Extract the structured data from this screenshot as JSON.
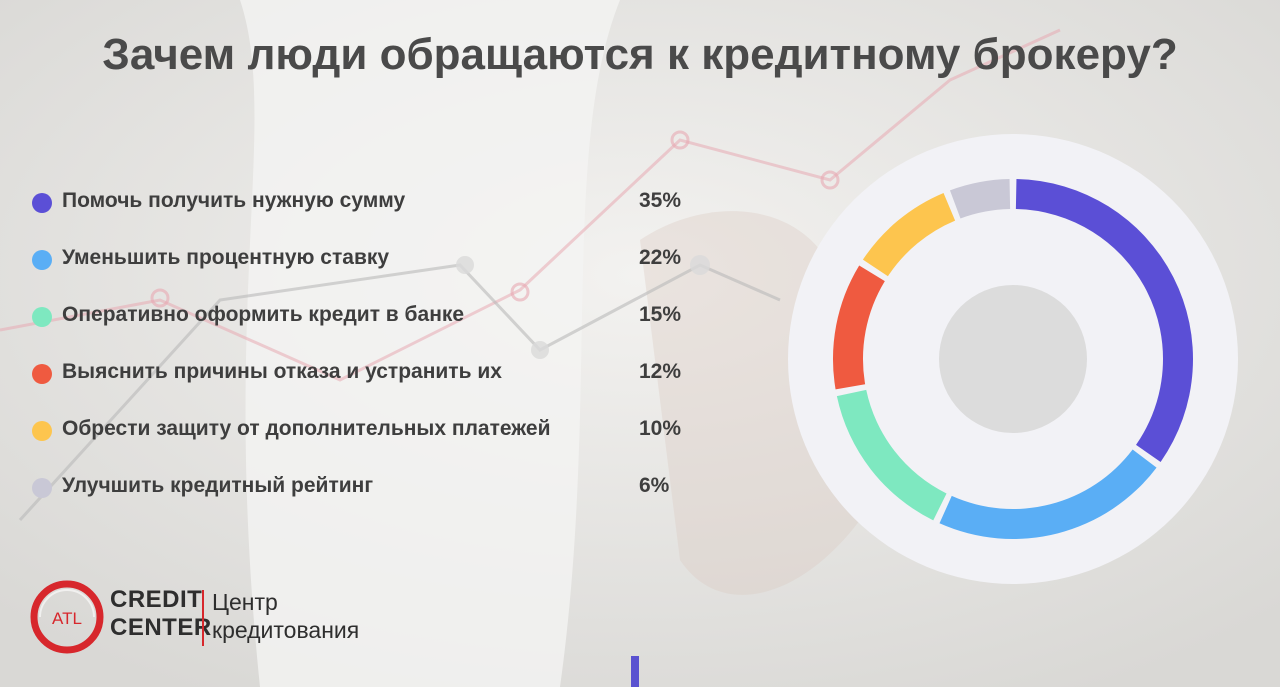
{
  "title": "Зачем люди обращаются к кредитному брокеру?",
  "chart_data": {
    "type": "pie",
    "title": "Зачем люди обращаются к кредитному брокеру?",
    "categories": [
      "Помочь получить нужную сумму",
      "Уменьшить процентную ставку",
      "Оперативно оформить кредит в банке",
      "Выяснить причины отказа и устранить их",
      "Обрести защиту от дополнительных платежей",
      "Улучшить кредитный рейтинг"
    ],
    "values": [
      35,
      22,
      15,
      12,
      10,
      6
    ],
    "value_labels": [
      "35%",
      "22%",
      "15%",
      "12%",
      "10%",
      "6%"
    ],
    "colors": [
      "#5b4fd6",
      "#5aaef5",
      "#7ee8c0",
      "#ef5a40",
      "#fdc54e",
      "#c9c8d6"
    ],
    "style": "donut",
    "legend_position": "left"
  },
  "logo": {
    "mark": "ATL",
    "brand_line1": "CREDIT",
    "brand_line2": "CENTER",
    "tagline_line1": "Центр",
    "tagline_line2": "кредитования",
    "color": "#d7272c"
  }
}
